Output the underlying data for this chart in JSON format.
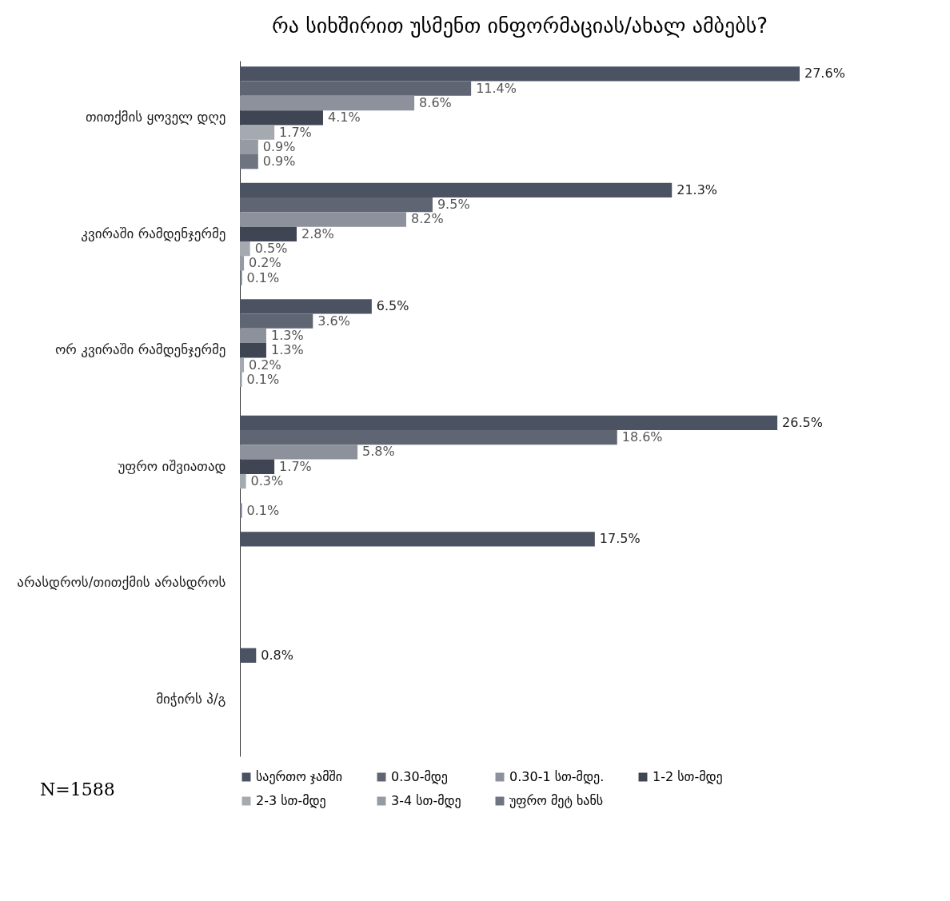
{
  "chart_data": {
    "type": "bar",
    "orientation": "horizontal",
    "title": "რა სიხშირით უსმენთ ინფორმაციას/ახალ ამბებს?",
    "categories": [
      "თითქმის ყოველ დღე",
      "კვირაში რამდენჯერმე",
      "ორ კვირაში რამდენჯერმე",
      "უფრო იშვიათად",
      "არასდროს/თითქმის არასდროს",
      "მიჭირს პ/გ"
    ],
    "series": [
      {
        "name": "საერთო ჯამში",
        "color": "#4b5262",
        "values": [
          27.6,
          21.3,
          6.5,
          26.5,
          17.5,
          0.8
        ],
        "value_labels": [
          "27.6%",
          "21.3%",
          "6.5%",
          "26.5%",
          "17.5%",
          "0.8%"
        ]
      },
      {
        "name": "0.30-მდე",
        "color": "#5f6573",
        "values": [
          11.4,
          9.5,
          3.6,
          18.6,
          null,
          null
        ],
        "value_labels": [
          "11.4%",
          "9.5%",
          "3.6%",
          "18.6%",
          null,
          null
        ]
      },
      {
        "name": "0.30-1 სთ-მდე.",
        "color": "#8c919b",
        "values": [
          8.6,
          8.2,
          1.3,
          5.8,
          null,
          null
        ],
        "value_labels": [
          "8.6%",
          "8.2%",
          "1.3%",
          "5.8%",
          null,
          null
        ]
      },
      {
        "name": "1-2 სთ-მდე",
        "color": "#3f4553",
        "values": [
          4.1,
          2.8,
          1.3,
          1.7,
          null,
          null
        ],
        "value_labels": [
          "4.1%",
          "2.8%",
          "1.3%",
          "1.7%",
          null,
          null
        ]
      },
      {
        "name": "2-3 სთ-მდე",
        "color": "#a5a9b0",
        "values": [
          1.7,
          0.5,
          0.2,
          0.3,
          null,
          null
        ],
        "value_labels": [
          "1.7%",
          "0.5%",
          "0.2%",
          "0.3%",
          null,
          null
        ]
      },
      {
        "name": "3-4 სთ-მდე",
        "color": "#959aa3",
        "values": [
          0.9,
          0.2,
          0.1,
          null,
          null,
          null
        ],
        "value_labels": [
          "0.9%",
          "0.2%",
          "0.1%",
          null,
          null,
          null
        ]
      },
      {
        "name": "უფრო მეტ ხანს",
        "color": "#6e7480",
        "values": [
          0.9,
          0.1,
          null,
          0.1,
          null,
          null
        ],
        "value_labels": [
          "0.9%",
          "0.1%",
          null,
          "0.1%",
          null,
          null
        ]
      }
    ],
    "annotations": [
      "N=1588"
    ],
    "legend": "bottom",
    "tick_labels": "y"
  }
}
